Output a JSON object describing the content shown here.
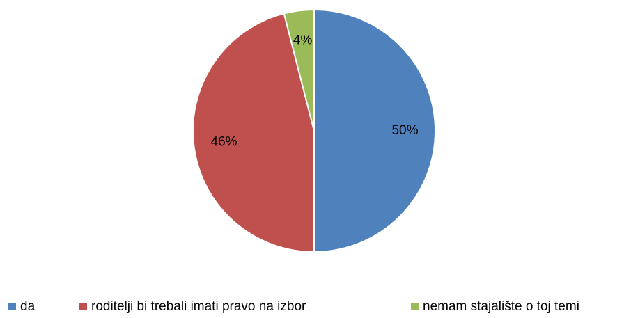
{
  "chart_data": {
    "type": "pie",
    "categories": [
      "da",
      "roditelji bi trebali imati pravo na izbor",
      "nemam stajalište o toj temi"
    ],
    "values": [
      50,
      46,
      4
    ],
    "value_labels": [
      "50%",
      "46%",
      "4%"
    ],
    "colors": [
      "#4f81bd",
      "#c0504d",
      "#9bbb59"
    ],
    "legend": "bottom"
  }
}
